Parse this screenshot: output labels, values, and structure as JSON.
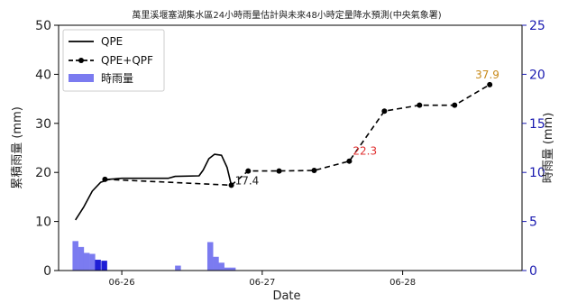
{
  "chart_data": {
    "type": "line",
    "title": "萬里溪堰塞湖集水區24小時雨量估計與未來48小時定量降水預測(中央氣象署)",
    "xlabel": "Date",
    "ylabel_left": "累積雨量 (mm)",
    "ylabel_right": "時雨量 (mm)",
    "ylim_left": [
      0,
      50
    ],
    "ylim_right": [
      0,
      25
    ],
    "yticks_left": [
      "0",
      "10",
      "20",
      "30",
      "40",
      "50"
    ],
    "yticks_right": [
      "0",
      "5",
      "10",
      "15",
      "20",
      "25"
    ],
    "x_range_days": [
      25.55,
      28.85
    ],
    "xticks": [
      {
        "label": "06-26",
        "day": 26.0
      },
      {
        "label": "06-27",
        "day": 27.0
      },
      {
        "label": "06-28",
        "day": 28.0
      }
    ],
    "grid": false,
    "legend_position": "top-left",
    "legend": {
      "qpe": "QPE",
      "qpf": "QPE+QPF",
      "hourly": "時雨量"
    },
    "series": [
      {
        "name": "QPE",
        "style": "solid",
        "color": "#000000",
        "points": [
          [
            25.67,
            10.3
          ],
          [
            25.73,
            13.0
          ],
          [
            25.79,
            16.2
          ],
          [
            25.85,
            18.0
          ],
          [
            25.91,
            18.6
          ],
          [
            26.0,
            18.8
          ],
          [
            26.2,
            18.8
          ],
          [
            26.33,
            18.8
          ],
          [
            26.38,
            19.2
          ],
          [
            26.55,
            19.3
          ],
          [
            26.58,
            20.5
          ],
          [
            26.62,
            22.8
          ],
          [
            26.66,
            23.7
          ],
          [
            26.71,
            23.5
          ],
          [
            26.75,
            21.0
          ],
          [
            26.78,
            17.4
          ]
        ]
      },
      {
        "name": "QPE+QPF",
        "style": "dashed-markers",
        "color": "#000000",
        "points": [
          [
            25.88,
            18.6
          ],
          [
            26.78,
            17.4
          ],
          [
            26.9,
            20.3
          ],
          [
            27.12,
            20.3
          ],
          [
            27.37,
            20.4
          ],
          [
            27.62,
            22.3
          ],
          [
            27.87,
            32.5
          ],
          [
            28.12,
            33.7
          ],
          [
            28.37,
            33.7
          ],
          [
            28.62,
            37.9
          ]
        ]
      }
    ],
    "hourly_bars": {
      "name": "時雨量",
      "color": "#7b7bf0",
      "highlight_color": "#1f1fd6",
      "bar_width_days": 0.0417,
      "bars": [
        {
          "x": 25.67,
          "value": 3.0
        },
        {
          "x": 25.71,
          "value": 2.4
        },
        {
          "x": 25.75,
          "value": 1.8
        },
        {
          "x": 25.79,
          "value": 1.7
        },
        {
          "x": 25.83,
          "value": 1.1,
          "highlight": true
        },
        {
          "x": 25.875,
          "value": 1.0,
          "highlight": true
        },
        {
          "x": 26.4,
          "value": 0.5
        },
        {
          "x": 26.63,
          "value": 2.9
        },
        {
          "x": 26.67,
          "value": 1.4
        },
        {
          "x": 26.71,
          "value": 0.8
        },
        {
          "x": 26.75,
          "value": 0.3
        },
        {
          "x": 26.79,
          "value": 0.3
        }
      ]
    },
    "annotations": [
      {
        "text": "17.4",
        "x": 26.78,
        "y": 17.4,
        "color": "#222222"
      },
      {
        "text": "22.3",
        "x": 27.62,
        "y": 22.3,
        "color": "#e03030"
      },
      {
        "text": "37.9",
        "x": 28.62,
        "y": 37.9,
        "color": "#c88a1a"
      }
    ]
  }
}
